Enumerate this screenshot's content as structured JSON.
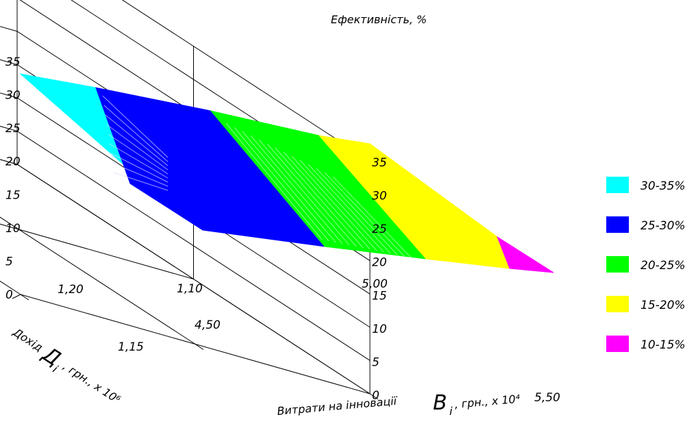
{
  "chart_data": {
    "type": "surface3d",
    "title": "Ефективність, %",
    "zlim": [
      0,
      35
    ],
    "z_ticks": [
      "0",
      "5",
      "10",
      "15",
      "20",
      "25",
      "30",
      "35"
    ],
    "x_axis": {
      "label_prefix": "Витрати на інновації",
      "symbol": "В",
      "subscript": "і",
      "unit": ", грн., х 10⁴",
      "ticks": [
        "4,50",
        "5,00",
        "5,50"
      ],
      "range": [
        4.5,
        5.5
      ]
    },
    "y_axis": {
      "label_prefix": "Дохід",
      "symbol": "Д",
      "subscript": "і",
      "unit": ", грн., х 10⁶",
      "ticks": [
        "1,10",
        "1,15",
        "1,20"
      ],
      "range": [
        1.1,
        1.2
      ]
    },
    "grid": true,
    "surface_bands": [
      {
        "label": "30-35%",
        "color": "#00ffff"
      },
      {
        "label": "25-30%",
        "color": "#0000ff"
      },
      {
        "label": "20-25%",
        "color": "#00ff00"
      },
      {
        "label": "15-20%",
        "color": "#ffff00"
      },
      {
        "label": "10-15%",
        "color": "#ff00ff"
      }
    ],
    "legend_position": "right"
  }
}
